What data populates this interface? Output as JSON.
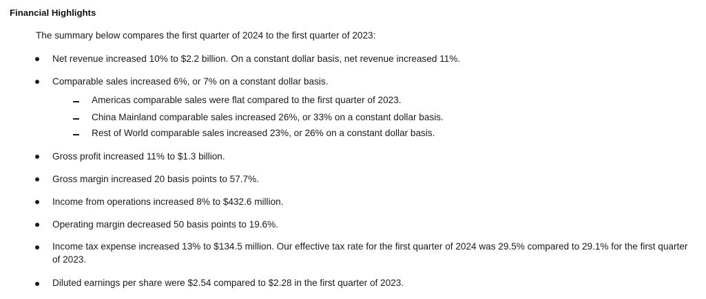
{
  "heading": "Financial Highlights",
  "intro": "The summary below compares the first quarter of 2024 to the first quarter of 2023:",
  "bullets": [
    "Net revenue increased 10% to $2.2 billion. On a constant dollar basis, net revenue increased 11%.",
    "Comparable sales increased 6%, or 7% on a constant dollar basis.",
    "Gross profit increased 11% to $1.3 billion.",
    "Gross margin increased 20 basis points to 57.7%.",
    "Income from operations increased 8% to $432.6 million.",
    "Operating margin decreased 50 basis points to 19.6%.",
    "Income tax expense increased 13% to $134.5 million. Our effective tax rate for the first quarter of 2024 was 29.5% compared to 29.1% for the first quarter of 2023.",
    "Diluted earnings per share were $2.54 compared to $2.28 in the first quarter of 2023."
  ],
  "sub_bullets": [
    "Americas comparable sales were flat compared to the first quarter of 2023.",
    "China Mainland comparable sales increased 26%, or 33% on a constant dollar basis.",
    "Rest of World comparable sales increased 23%, or 26% on a constant dollar basis."
  ]
}
